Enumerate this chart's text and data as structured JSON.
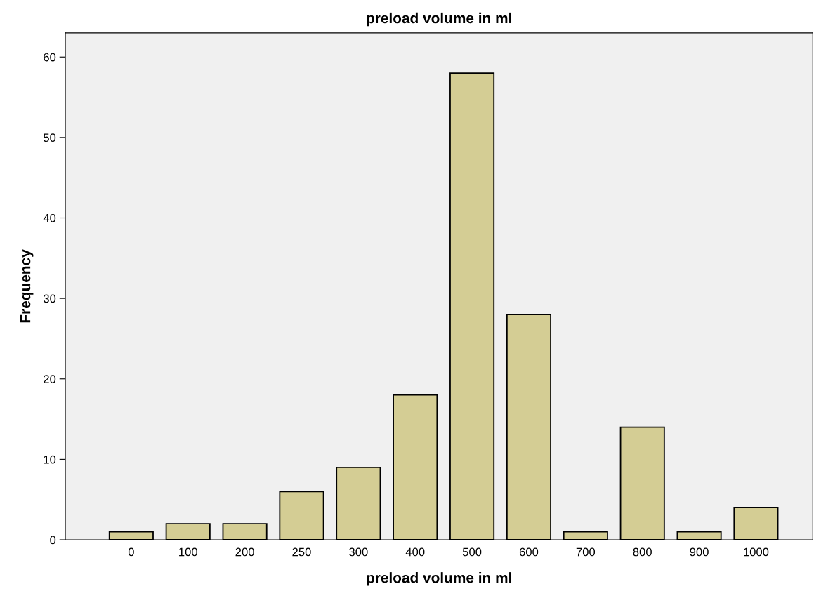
{
  "chart_data": {
    "type": "bar",
    "title": "preload volume in ml",
    "xlabel": "preload volume in ml",
    "ylabel": "Frequency",
    "categories": [
      "0",
      "100",
      "200",
      "250",
      "300",
      "400",
      "500",
      "600",
      "700",
      "800",
      "900",
      "1000"
    ],
    "values": [
      1,
      2,
      2,
      6,
      9,
      18,
      58,
      28,
      1,
      14,
      1,
      4
    ],
    "color": "#d4cd94",
    "ylim": [
      0,
      63
    ],
    "yticks": [
      0,
      10,
      20,
      30,
      40,
      50,
      60
    ],
    "grid": false,
    "legend": false
  }
}
